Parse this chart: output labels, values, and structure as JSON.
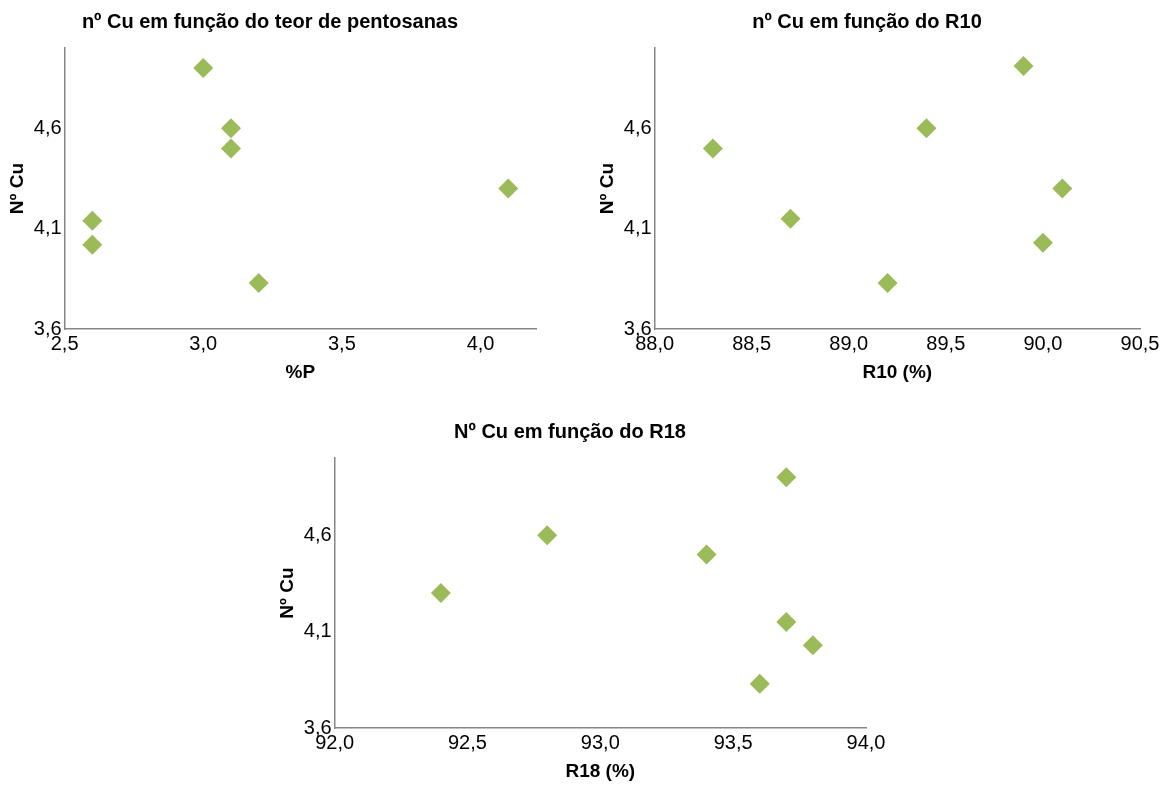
{
  "chart_data": [
    {
      "type": "scatter",
      "title": "nº Cu em função do teor de pentosanas",
      "xlabel": "%P",
      "ylabel": "Nº Cu",
      "marker": "diamond",
      "grid": false,
      "x": [
        2.6,
        2.6,
        3.0,
        3.1,
        3.1,
        3.2,
        4.1
      ],
      "series": [
        {
          "color": "#9bbb59",
          "values": [
            4.14,
            4.02,
            4.9,
            4.6,
            4.5,
            3.83,
            4.3
          ]
        }
      ],
      "xlim": [
        2.5,
        4.2
      ],
      "xticks": [
        {
          "value": 2.5,
          "label": "2,5"
        },
        {
          "value": 3.0,
          "label": "3,0"
        },
        {
          "value": 3.5,
          "label": "3,5"
        },
        {
          "value": 4.0,
          "label": "4,0"
        }
      ],
      "ylim": [
        3.6,
        5.0
      ],
      "yticks": [
        {
          "value": 3.6,
          "label": "3,6"
        },
        {
          "value": 4.1,
          "label": "4,1"
        },
        {
          "value": 4.6,
          "label": "4,6"
        }
      ]
    },
    {
      "type": "scatter",
      "title": "nº Cu em função do R10",
      "xlabel": "R10 (%)",
      "ylabel": "Nº Cu",
      "marker": "diamond",
      "grid": false,
      "x": [
        88.3,
        88.7,
        89.2,
        89.4,
        89.9,
        90.0,
        90.1
      ],
      "series": [
        {
          "color": "#9bbb59",
          "values": [
            4.5,
            4.15,
            3.83,
            4.6,
            4.91,
            4.03,
            4.3
          ]
        }
      ],
      "xlim": [
        88.0,
        90.5
      ],
      "xticks": [
        {
          "value": 88.0,
          "label": "88,0"
        },
        {
          "value": 88.5,
          "label": "88,5"
        },
        {
          "value": 89.0,
          "label": "89,0"
        },
        {
          "value": 89.5,
          "label": "89,5"
        },
        {
          "value": 90.0,
          "label": "90,0"
        },
        {
          "value": 90.5,
          "label": "90,5"
        }
      ],
      "ylim": [
        3.6,
        5.0
      ],
      "yticks": [
        {
          "value": 3.6,
          "label": "3,6"
        },
        {
          "value": 4.1,
          "label": "4,1"
        },
        {
          "value": 4.6,
          "label": "4,6"
        }
      ]
    },
    {
      "type": "scatter",
      "title": "Nº Cu em função do R18",
      "xlabel": "R18 (%)",
      "ylabel": "Nº Cu",
      "marker": "diamond",
      "grid": false,
      "x": [
        92.4,
        92.8,
        93.4,
        93.6,
        93.7,
        93.7,
        93.8
      ],
      "series": [
        {
          "color": "#9bbb59",
          "values": [
            4.3,
            4.6,
            4.5,
            3.83,
            4.9,
            4.15,
            4.03
          ]
        }
      ],
      "xlim": [
        92.0,
        94.0
      ],
      "xticks": [
        {
          "value": 92.0,
          "label": "92,0"
        },
        {
          "value": 92.5,
          "label": "92,5"
        },
        {
          "value": 93.0,
          "label": "93,0"
        },
        {
          "value": 93.5,
          "label": "93,5"
        },
        {
          "value": 94.0,
          "label": "94,0"
        }
      ],
      "ylim": [
        3.6,
        5.0
      ],
      "yticks": [
        {
          "value": 3.6,
          "label": "3,6"
        },
        {
          "value": 4.1,
          "label": "4,1"
        },
        {
          "value": 4.6,
          "label": "4,6"
        }
      ]
    }
  ]
}
